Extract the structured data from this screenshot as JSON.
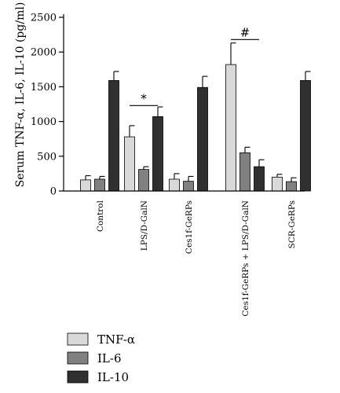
{
  "chart_data": {
    "type": "bar",
    "ylabel": "Serum TNF-α, IL-6, IL-10 (pg/ml)",
    "ylim": [
      0,
      2500
    ],
    "yticks": [
      0,
      500,
      1000,
      1500,
      2000,
      2500
    ],
    "categories": [
      "Control",
      "LPS/D-GalN",
      "Ces1f-GeRPs",
      "Ces1f-GeRPs + LPS/D-GalN",
      "SCR-GeRPs"
    ],
    "series": [
      {
        "name": "TNF-α",
        "color": "#d9d9d9",
        "values": [
          160,
          780,
          170,
          1820,
          200
        ],
        "errors": [
          60,
          160,
          80,
          310,
          40
        ]
      },
      {
        "name": "IL-6",
        "color": "#808080",
        "values": [
          170,
          310,
          140,
          550,
          135
        ],
        "errors": [
          40,
          40,
          70,
          80,
          55
        ]
      },
      {
        "name": "IL-10",
        "color": "#303030",
        "values": [
          1590,
          1070,
          1490,
          350,
          1590
        ],
        "errors": [
          130,
          140,
          160,
          100,
          130
        ]
      }
    ],
    "annotations": [
      {
        "text": "*",
        "category": 1,
        "level": 1230
      },
      {
        "text": "#",
        "category": 3,
        "level": 2180
      }
    ],
    "legend_position": "bottom-left",
    "grid": false
  }
}
